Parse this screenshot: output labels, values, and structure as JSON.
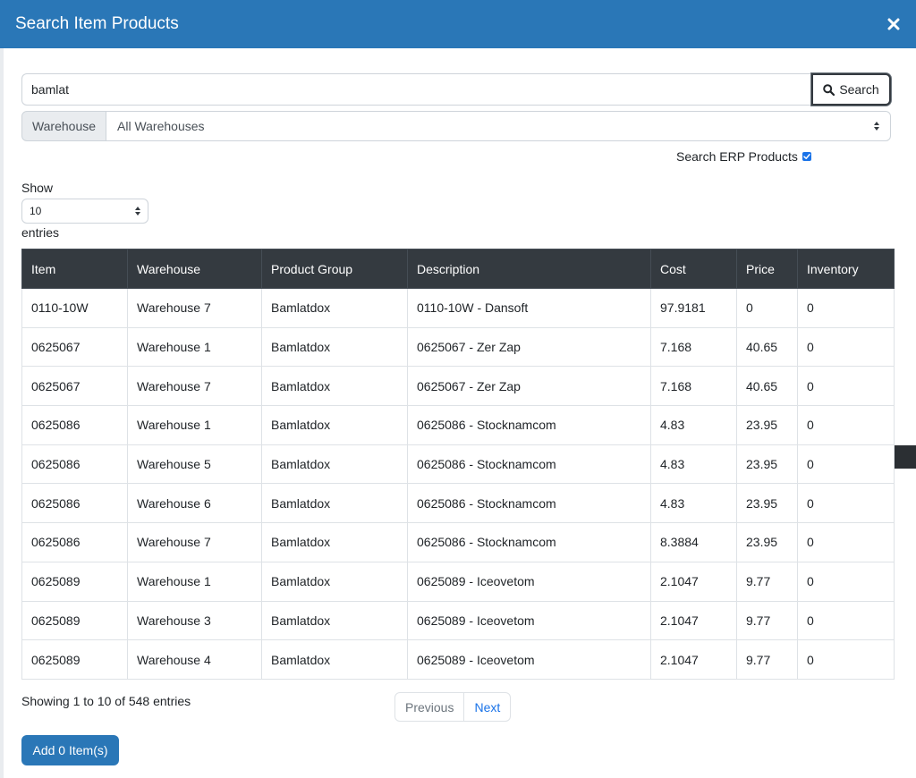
{
  "modal": {
    "title": "Search Item Products",
    "close_icon": "close-icon"
  },
  "search": {
    "value": "bamlat",
    "button_label": "Search",
    "icon": "search-icon"
  },
  "warehouse": {
    "label": "Warehouse",
    "selected": "All Warehouses"
  },
  "erp": {
    "label": "Search ERP Products",
    "checked": true
  },
  "length": {
    "show_label": "Show",
    "selected": "10",
    "entries_label": "entries"
  },
  "table": {
    "headers": [
      "Item",
      "Warehouse",
      "Product Group",
      "Description",
      "Cost",
      "Price",
      "Inventory"
    ],
    "rows": [
      [
        "0110-10W",
        "Warehouse 7",
        "Bamlatdox",
        "0110-10W - Dansoft",
        "97.9181",
        "0",
        "0"
      ],
      [
        "0625067",
        "Warehouse 1",
        "Bamlatdox",
        "0625067 - Zer Zap",
        "7.168",
        "40.65",
        "0"
      ],
      [
        "0625067",
        "Warehouse 7",
        "Bamlatdox",
        "0625067 - Zer Zap",
        "7.168",
        "40.65",
        "0"
      ],
      [
        "0625086",
        "Warehouse 1",
        "Bamlatdox",
        "0625086 - Stocknamcom",
        "4.83",
        "23.95",
        "0"
      ],
      [
        "0625086",
        "Warehouse 5",
        "Bamlatdox",
        "0625086 - Stocknamcom",
        "4.83",
        "23.95",
        "0"
      ],
      [
        "0625086",
        "Warehouse 6",
        "Bamlatdox",
        "0625086 - Stocknamcom",
        "4.83",
        "23.95",
        "0"
      ],
      [
        "0625086",
        "Warehouse 7",
        "Bamlatdox",
        "0625086 - Stocknamcom",
        "8.3884",
        "23.95",
        "0"
      ],
      [
        "0625089",
        "Warehouse 1",
        "Bamlatdox",
        "0625089 - Iceovetom",
        "2.1047",
        "9.77",
        "0"
      ],
      [
        "0625089",
        "Warehouse 3",
        "Bamlatdox",
        "0625089 - Iceovetom",
        "2.1047",
        "9.77",
        "0"
      ],
      [
        "0625089",
        "Warehouse 4",
        "Bamlatdox",
        "0625089 - Iceovetom",
        "2.1047",
        "9.77",
        "0"
      ]
    ]
  },
  "footer": {
    "info": "Showing 1 to 10 of 548 entries",
    "previous": "Previous",
    "next": "Next",
    "add_button": "Add 0 Item(s)"
  },
  "colors": {
    "header_bg": "#2a77b7",
    "table_head_bg": "#343a40",
    "link": "#1a73e8"
  }
}
